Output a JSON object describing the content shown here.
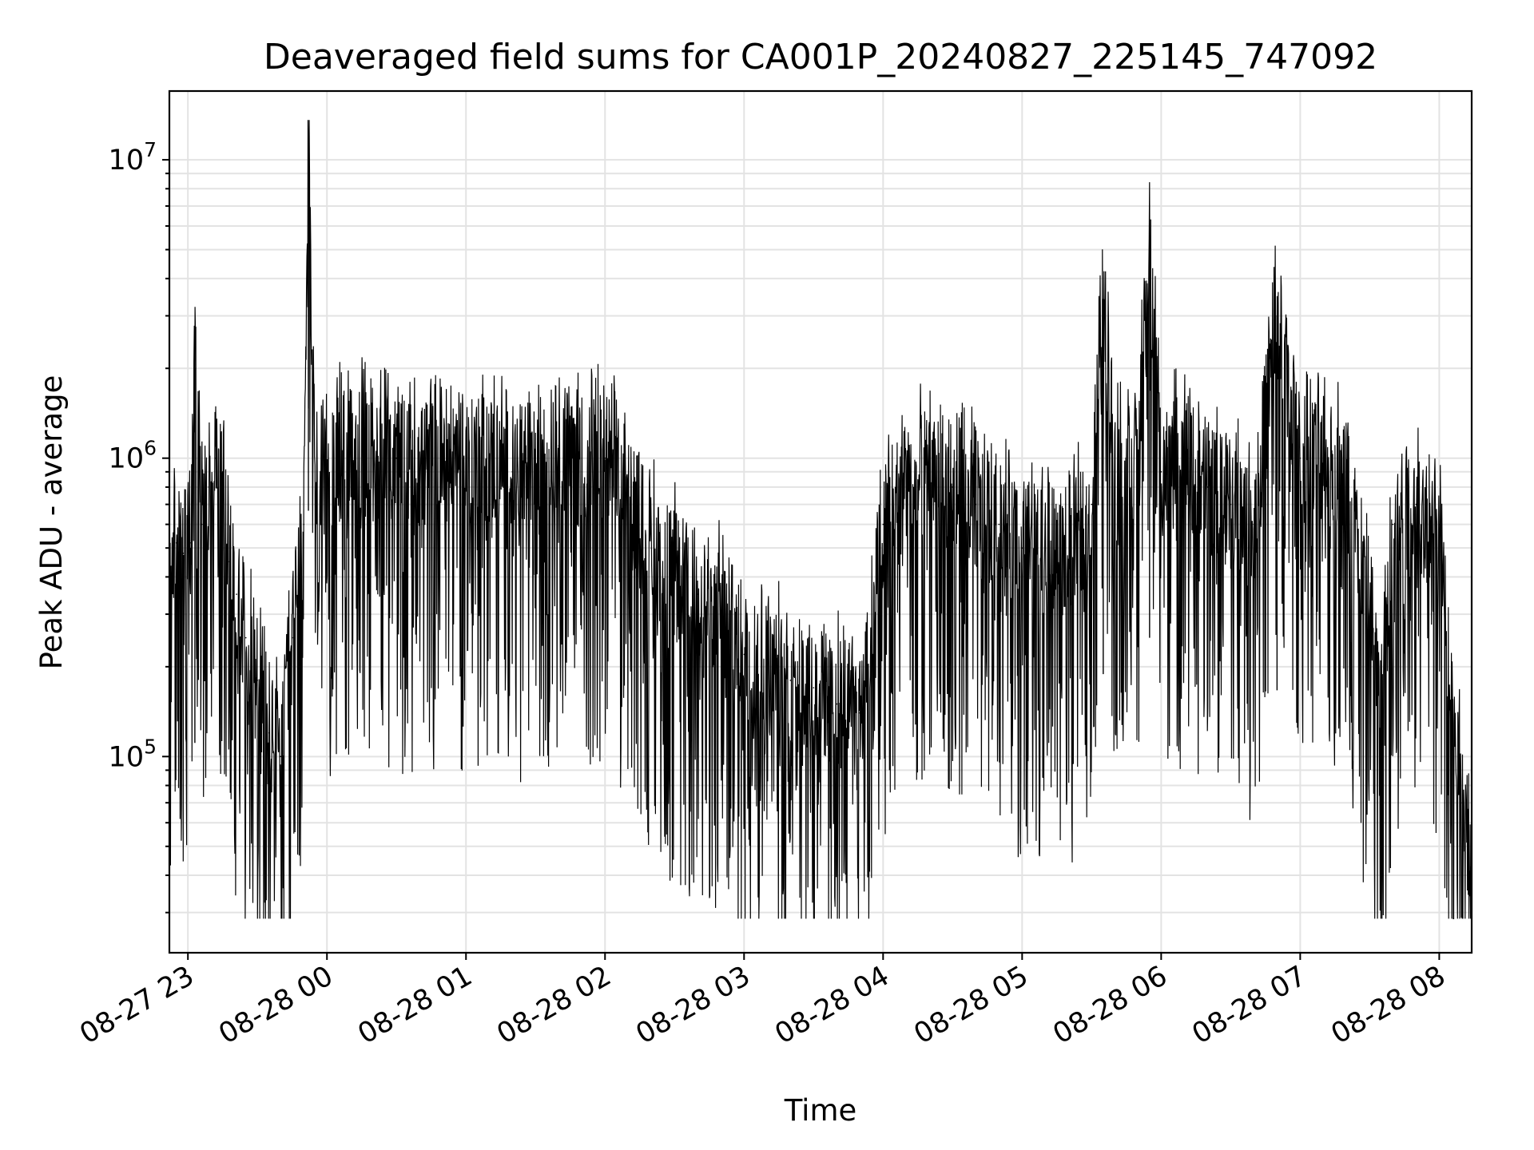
{
  "chart_data": {
    "type": "line",
    "title": "Deaveraged field sums for CA001P_20240827_225145_747092",
    "xlabel": "Time",
    "ylabel": "Peak ADU - average",
    "yscale": "log",
    "ylim": [
      22000,
      17000000
    ],
    "xlim": [
      "2024-08-27 22:52",
      "2024-08-28 08:14"
    ],
    "grid": "major and minor",
    "x_ticks": [
      "08-27 23",
      "08-28 00",
      "08-28 01",
      "08-28 02",
      "08-28 03",
      "08-28 04",
      "08-28 05",
      "08-28 06",
      "08-28 07",
      "08-28 08"
    ],
    "y_ticks": [
      {
        "base": "10",
        "exp": "5",
        "value": 100000
      },
      {
        "base": "10",
        "exp": "6",
        "value": 1000000
      },
      {
        "base": "10",
        "exp": "7",
        "value": 10000000
      }
    ],
    "series": [
      {
        "color": "#000000",
        "points": [
          [
            "2024-08-27 22:52",
            450000
          ],
          [
            "2024-08-27 22:55",
            520000
          ],
          [
            "2024-08-27 22:58",
            480000
          ],
          [
            "2024-08-27 23:01",
            520000
          ],
          [
            "2024-08-27 23:03",
            2000000
          ],
          [
            "2024-08-27 23:06",
            600000
          ],
          [
            "2024-08-27 23:09",
            800000
          ],
          [
            "2024-08-27 23:12",
            1000000
          ],
          [
            "2024-08-27 23:15",
            900000
          ],
          [
            "2024-08-27 23:18",
            450000
          ],
          [
            "2024-08-27 23:21",
            350000
          ],
          [
            "2024-08-27 23:25",
            250000
          ],
          [
            "2024-08-27 23:30",
            180000
          ],
          [
            "2024-08-27 23:35",
            120000
          ],
          [
            "2024-08-27 23:40",
            100000
          ],
          [
            "2024-08-27 23:45",
            250000
          ],
          [
            "2024-08-27 23:50",
            600000
          ],
          [
            "2024-08-27 23:52",
            12000000
          ],
          [
            "2024-08-27 23:55",
            700000
          ],
          [
            "2024-08-28 00:00",
            900000
          ],
          [
            "2024-08-28 00:10",
            1100000
          ],
          [
            "2024-08-28 00:20",
            1000000
          ],
          [
            "2024-08-28 00:30",
            1000000
          ],
          [
            "2024-08-28 00:40",
            900000
          ],
          [
            "2024-08-28 00:50",
            1100000
          ],
          [
            "2024-08-28 01:00",
            950000
          ],
          [
            "2024-08-28 01:10",
            1000000
          ],
          [
            "2024-08-28 01:20",
            900000
          ],
          [
            "2024-08-28 01:30",
            950000
          ],
          [
            "2024-08-28 01:40",
            1100000
          ],
          [
            "2024-08-28 01:50",
            1000000
          ],
          [
            "2024-08-28 02:00",
            1000000
          ],
          [
            "2024-08-28 02:10",
            800000
          ],
          [
            "2024-08-28 02:20",
            500000
          ],
          [
            "2024-08-28 02:30",
            400000
          ],
          [
            "2024-08-28 02:40",
            350000
          ],
          [
            "2024-08-28 02:50",
            300000
          ],
          [
            "2024-08-28 03:00",
            220000
          ],
          [
            "2024-08-28 03:10",
            200000
          ],
          [
            "2024-08-28 03:20",
            180000
          ],
          [
            "2024-08-28 03:30",
            170000
          ],
          [
            "2024-08-28 03:40",
            150000
          ],
          [
            "2024-08-28 03:50",
            140000
          ],
          [
            "2024-08-28 04:00",
            600000
          ],
          [
            "2024-08-28 04:10",
            800000
          ],
          [
            "2024-08-28 04:20",
            900000
          ],
          [
            "2024-08-28 04:30",
            800000
          ],
          [
            "2024-08-28 04:40",
            700000
          ],
          [
            "2024-08-28 04:50",
            600000
          ],
          [
            "2024-08-28 05:00",
            500000
          ],
          [
            "2024-08-28 05:10",
            500000
          ],
          [
            "2024-08-28 05:20",
            450000
          ],
          [
            "2024-08-28 05:30",
            700000
          ],
          [
            "2024-08-28 05:35",
            3400000
          ],
          [
            "2024-08-28 05:40",
            1000000
          ],
          [
            "2024-08-28 05:50",
            1000000
          ],
          [
            "2024-08-28 05:55",
            4500000
          ],
          [
            "2024-08-28 06:00",
            900000
          ],
          [
            "2024-08-28 06:10",
            1000000
          ],
          [
            "2024-08-28 06:20",
            800000
          ],
          [
            "2024-08-28 06:30",
            700000
          ],
          [
            "2024-08-28 06:40",
            600000
          ],
          [
            "2024-08-28 06:50",
            3000000
          ],
          [
            "2024-08-28 07:00",
            1000000
          ],
          [
            "2024-08-28 07:10",
            1000000
          ],
          [
            "2024-08-28 07:20",
            900000
          ],
          [
            "2024-08-28 07:30",
            300000
          ],
          [
            "2024-08-28 07:35",
            150000
          ],
          [
            "2024-08-28 07:40",
            600000
          ],
          [
            "2024-08-28 07:50",
            700000
          ],
          [
            "2024-08-28 08:00",
            600000
          ],
          [
            "2024-08-28 08:05",
            150000
          ],
          [
            "2024-08-28 08:10",
            70000
          ],
          [
            "2024-08-28 08:14",
            35000
          ]
        ]
      }
    ]
  }
}
